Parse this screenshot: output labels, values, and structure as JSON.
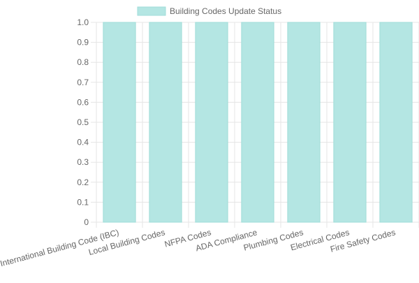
{
  "chart_data": {
    "type": "bar",
    "categories": [
      "International Building Code (IBC)",
      "Local Building Codes",
      "NFPA Codes",
      "ADA Compliance",
      "Plumbing Codes",
      "Electrical Codes",
      "Fire Safety Codes"
    ],
    "series": [
      {
        "name": "Building Codes Update Status",
        "values": [
          1,
          1,
          1,
          1,
          1,
          1,
          1
        ]
      }
    ],
    "ylim": [
      0,
      1
    ],
    "yticks": [
      "0",
      "0.1",
      "0.2",
      "0.3",
      "0.4",
      "0.5",
      "0.6",
      "0.7",
      "0.8",
      "0.9",
      "1.0"
    ],
    "grid": true,
    "legend_position": "top",
    "colors": {
      "bar_fill": "#b4e6e3",
      "bar_stroke": "#9fdcd8",
      "grid": "#e5e5e5",
      "axis_text": "#666666"
    }
  }
}
